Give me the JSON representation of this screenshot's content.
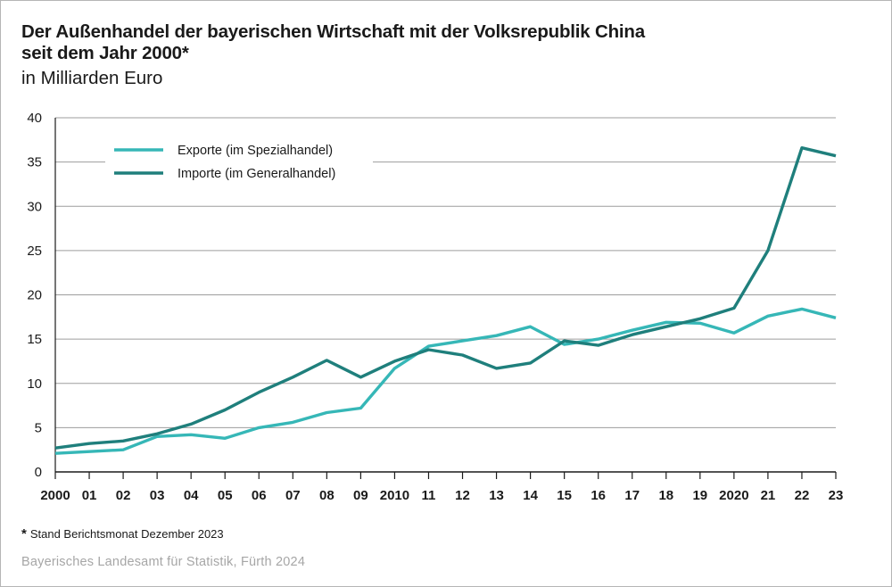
{
  "header": {
    "title_line1": "Der Außenhandel der bayerischen Wirtschaft mit der Volksrepublik China",
    "title_line2": "seit dem Jahr 2000*",
    "subtitle": "in Milliarden Euro"
  },
  "footnote": {
    "marker": "*",
    "text": "Stand Berichtsmonat Dezember 2023"
  },
  "source": "Bayerisches Landesamt für Statistik, Fürth 2024",
  "chart_data": {
    "type": "line",
    "categories": [
      "2000",
      "01",
      "02",
      "03",
      "04",
      "05",
      "06",
      "07",
      "08",
      "09",
      "2010",
      "11",
      "12",
      "13",
      "14",
      "15",
      "16",
      "17",
      "18",
      "19",
      "2020",
      "21",
      "22",
      "23"
    ],
    "ylim": [
      0,
      40
    ],
    "yticks": [
      0,
      5,
      10,
      15,
      20,
      25,
      30,
      35,
      40
    ],
    "grid": true,
    "legend_position": "top-left",
    "series": [
      {
        "name": "Exporte (im Spezialhandel)",
        "color": "#36b7b7",
        "values": [
          2.1,
          2.3,
          2.5,
          4.0,
          4.2,
          3.8,
          5.0,
          5.6,
          6.7,
          7.2,
          11.7,
          14.2,
          14.8,
          15.4,
          16.4,
          14.4,
          15.0,
          16.0,
          16.9,
          16.8,
          15.7,
          17.6,
          18.4,
          17.4
        ]
      },
      {
        "name": "Importe (im Generalhandel)",
        "color": "#1f7f7c",
        "values": [
          2.7,
          3.2,
          3.5,
          4.3,
          5.4,
          7.0,
          9.0,
          10.7,
          12.6,
          10.7,
          12.5,
          13.8,
          13.2,
          11.7,
          12.3,
          14.8,
          14.3,
          15.5,
          16.4,
          17.3,
          18.5,
          25.0,
          36.6,
          35.7
        ]
      }
    ]
  }
}
